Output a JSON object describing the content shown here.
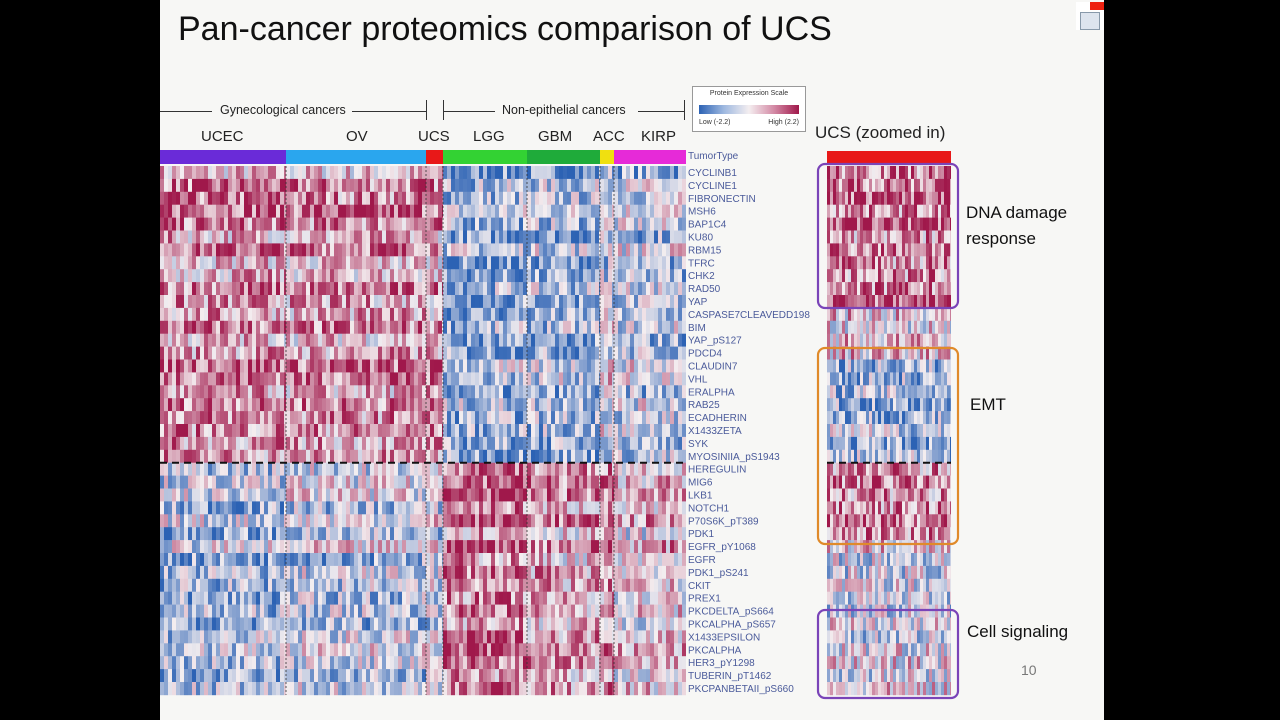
{
  "slide": {
    "title": "Pan-cancer proteomics comparison of UCS",
    "page_number": "10"
  },
  "groups": {
    "gynecological": "Gynecological cancers",
    "non_epithelial": "Non-epithelial cancers"
  },
  "cancer_types": [
    {
      "label": "UCEC",
      "color": "#6a2bd8"
    },
    {
      "label": "OV",
      "color": "#2aa6ee"
    },
    {
      "label": "UCS",
      "color": "#e81818"
    },
    {
      "label": "LGG",
      "color": "#33d233"
    },
    {
      "label": "GBM",
      "color": "#1fab3a"
    },
    {
      "label": "ACC",
      "color": "#f0e010"
    },
    {
      "label": "KIRP",
      "color": "#e62ad8"
    }
  ],
  "scale": {
    "title": "Protein Expression Scale",
    "low": "Low (-2.2)",
    "high": "High (2.2)",
    "low_color": "#2c62b4",
    "high_color": "#a0184b"
  },
  "tumor_type_label": "TumorType",
  "genes": [
    "CYCLINB1",
    "CYCLINE1",
    "FIBRONECTIN",
    "MSH6",
    "BAP1C4",
    "KU80",
    "RBM15",
    "TFRC",
    "CHK2",
    "RAD50",
    "YAP",
    "CASPASE7CLEAVEDD198",
    "BIM",
    "YAP_pS127",
    "PDCD4",
    "CLAUDIN7",
    "VHL",
    "ERALPHA",
    "RAB25",
    "ECADHERIN",
    "X1433ZETA",
    "SYK",
    "MYOSINIIA_pS1943",
    "HEREGULIN",
    "MIG6",
    "LKB1",
    "NOTCH1",
    "P70S6K_pT389",
    "PDK1",
    "EGFR_pY1068",
    "EGFR",
    "PDK1_pS241",
    "CKIT",
    "PREX1",
    "PKCDELTA_pS664",
    "PKCALPHA_pS657",
    "X1433EPSILON",
    "PKCALPHA",
    "HER3_pY1298",
    "TUBERIN_pT1462",
    "PKCPANBETAII_pS660"
  ],
  "zoom": {
    "title": "UCS  (zoomed in)",
    "regions": [
      {
        "label": "DNA damage response",
        "color": "#7a44b8"
      },
      {
        "label": "EMT",
        "color": "#e08a2a"
      },
      {
        "label": "Cell signaling",
        "color": "#7a44b8"
      }
    ]
  }
}
